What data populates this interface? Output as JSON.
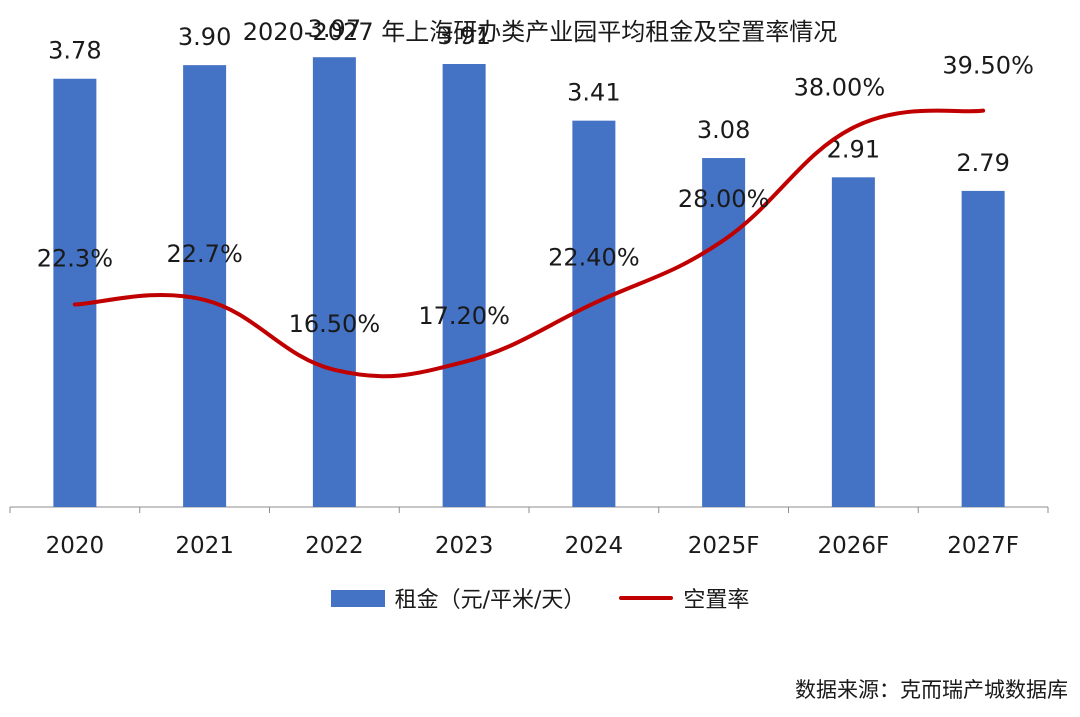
{
  "title": "2020-2027 年上海研办类产业园平均租金及空置率情况",
  "source": "数据来源：克而瑞产城数据库",
  "colors": {
    "bar": "#4472C4",
    "line": "#C00000",
    "axis": "#8c8c8c"
  },
  "chart_data": {
    "type": "bar",
    "categories": [
      "2020",
      "2021",
      "2022",
      "2023",
      "2024",
      "2025F",
      "2026F",
      "2027F"
    ],
    "series": [
      {
        "name": "租金（元/平米/天）",
        "type": "bar",
        "axis": "left",
        "values": [
          3.78,
          3.9,
          3.97,
          3.91,
          3.41,
          3.08,
          2.91,
          2.79
        ],
        "labels": [
          "3.78",
          "3.90",
          "3.97",
          "3.91",
          "3.41",
          "3.08",
          "2.91",
          "2.79"
        ]
      },
      {
        "name": "空置率",
        "type": "line",
        "smooth": true,
        "axis": "right",
        "values": [
          22.3,
          22.7,
          16.5,
          17.2,
          22.4,
          28.0,
          38.0,
          39.5
        ],
        "labels": [
          "22.3%",
          "22.7%",
          "16.50%",
          "17.20%",
          "22.40%",
          "28.00%",
          "38.00%",
          "39.50%"
        ]
      }
    ],
    "ylim_left": [
      0,
      4.0
    ],
    "ylim_right": [
      0,
      50
    ],
    "axes_visible": false,
    "grid": false,
    "legend_position": "bottom"
  }
}
